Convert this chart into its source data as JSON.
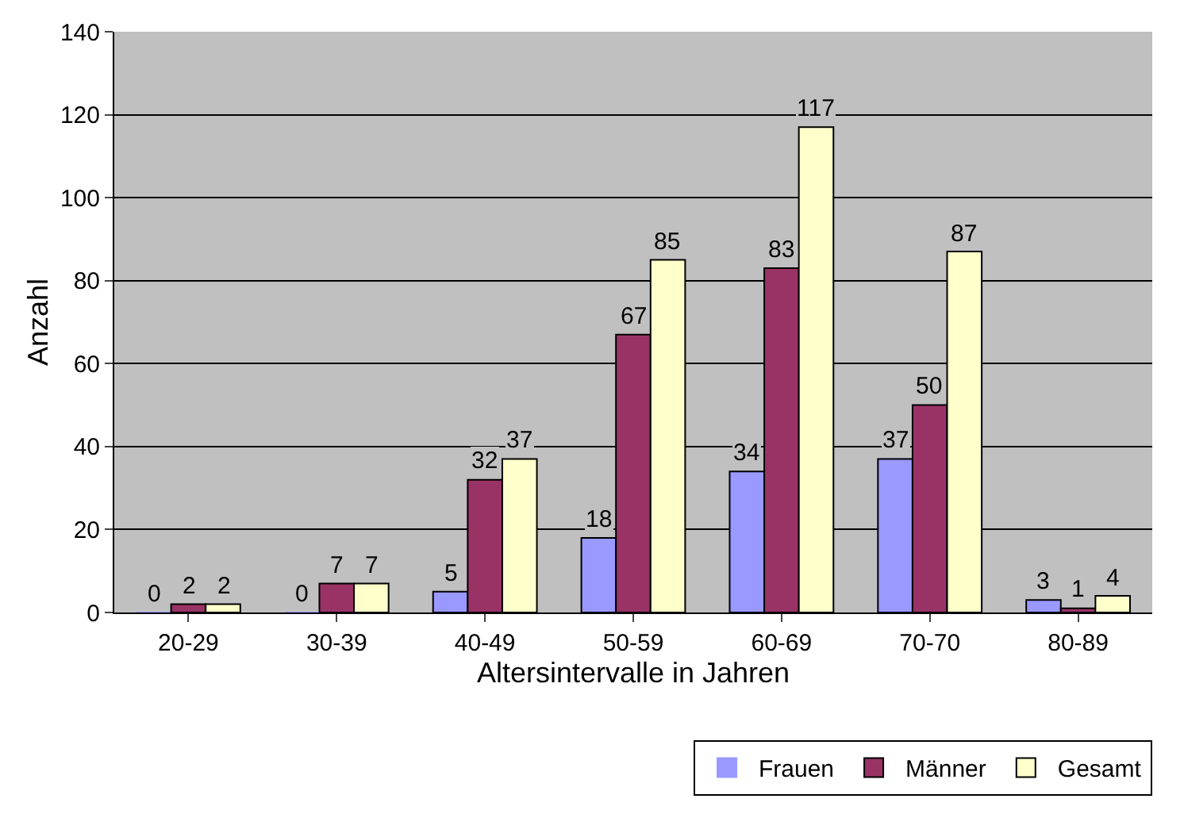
{
  "chart_data": {
    "type": "bar",
    "xlabel": "Altersintervalle in Jahren",
    "ylabel": "Anzahl",
    "categories": [
      "20-29",
      "30-39",
      "40-49",
      "50-59",
      "60-69",
      "70-70",
      "80-89"
    ],
    "series": [
      {
        "name": "Frauen",
        "color": "#9999ff",
        "values": [
          0,
          0,
          5,
          18,
          34,
          37,
          3
        ]
      },
      {
        "name": "Männer",
        "color": "#993366",
        "values": [
          2,
          7,
          32,
          67,
          83,
          50,
          1
        ]
      },
      {
        "name": "Gesamt",
        "color": "#ffffcc",
        "values": [
          2,
          7,
          37,
          85,
          117,
          87,
          4
        ]
      }
    ],
    "ylim": [
      0,
      140
    ],
    "yticks": [
      0,
      20,
      40,
      60,
      80,
      100,
      120,
      140
    ],
    "grid": "y",
    "legend": "bottom right",
    "data_labels": true
  }
}
